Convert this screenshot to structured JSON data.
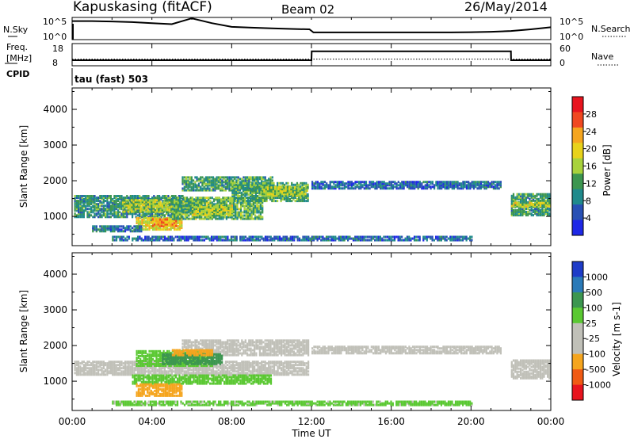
{
  "header": {
    "title": "Kapuskasing (fitACF)",
    "beam": "Beam 02",
    "date": "26/May/2014"
  },
  "noise_panel": {
    "left_label": "N.Sky",
    "right_label": "N.Search",
    "left_ticks": [
      "10^5",
      "10^0"
    ],
    "right_ticks": [
      "10^5",
      "10^0"
    ]
  },
  "freq_panel": {
    "left_label_1": "Freq.",
    "left_label_2": "[MHz]",
    "cpid_label": "CPID",
    "right_label": "Nave",
    "left_ticks": [
      "18",
      "8"
    ],
    "right_ticks": [
      "60",
      "0"
    ],
    "cpid_value": "tau (fast) 503"
  },
  "power_panel": {
    "ylabel": "Slant Range [km]",
    "yticks": [
      "4000",
      "3000",
      "2000",
      "1000"
    ],
    "colorbar_label": "Power [dB]",
    "colorbar_ticks": [
      "28",
      "24",
      "20",
      "16",
      "12",
      "8",
      "4"
    ],
    "colorbar_colors": [
      "#e8141e",
      "#f04820",
      "#f5a51e",
      "#e8d21a",
      "#a8d23c",
      "#3c9650",
      "#208a8c",
      "#2850b4",
      "#1e28e6"
    ]
  },
  "velocity_panel": {
    "ylabel": "Slant Range [km]",
    "yticks": [
      "4000",
      "3000",
      "2000",
      "1000"
    ],
    "colorbar_label": "Velocity [m s-1]",
    "colorbar_ticks": [
      "1000",
      "500",
      "100",
      "25",
      "-25",
      "-100",
      "-500",
      "-1000"
    ],
    "colorbar_colors": [
      "#1e3cc8",
      "#2a7ab8",
      "#3c9650",
      "#5ac832",
      "#c0c0b8",
      "#c0c0b8",
      "#f5a51e",
      "#f05a14",
      "#e8141e"
    ]
  },
  "xaxis": {
    "label": "Time UT",
    "ticks": [
      "00:00",
      "04:00",
      "08:00",
      "12:00",
      "16:00",
      "20:00",
      "00:00"
    ]
  },
  "chart_data": [
    {
      "type": "line",
      "name": "noise",
      "x_hours": [
        0,
        1,
        2,
        3,
        4,
        5,
        6,
        7,
        8,
        9,
        10,
        11,
        11.9,
        12.1,
        13,
        14,
        15,
        16,
        17,
        18,
        19,
        20,
        21,
        22,
        23,
        24
      ],
      "sky_level": [
        0.9,
        0.9,
        0.88,
        0.85,
        0.8,
        0.75,
        0.92,
        0.8,
        0.62,
        0.58,
        0.55,
        0.52,
        0.5,
        0.35,
        0.35,
        0.35,
        0.35,
        0.35,
        0.35,
        0.35,
        0.35,
        0.36,
        0.38,
        0.42,
        0.5,
        0.6
      ]
    },
    {
      "type": "line",
      "name": "frequency",
      "x_hours": [
        0,
        12,
        12.01,
        22,
        22.01,
        24
      ],
      "freq_mhz": [
        10.5,
        10.5,
        14.5,
        14.5,
        10.5,
        10.5
      ],
      "nave": [
        18,
        18,
        18,
        18,
        18,
        18
      ]
    },
    {
      "type": "heatmap",
      "name": "power",
      "x_range_hours": [
        0,
        24
      ],
      "y_range_km": [
        180,
        4600
      ],
      "colorbar_range_db": [
        0,
        30
      ],
      "regions": [
        {
          "t0": 0.1,
          "t1": 5.5,
          "r0": 950,
          "r1": 1550,
          "v": 9
        },
        {
          "t0": 2.5,
          "t1": 6.5,
          "r0": 1100,
          "r1": 1450,
          "v": 15
        },
        {
          "t0": 3.2,
          "t1": 5.5,
          "r0": 600,
          "r1": 950,
          "v": 18
        },
        {
          "t0": 4.0,
          "t1": 5.2,
          "r0": 700,
          "r1": 900,
          "v": 22
        },
        {
          "t0": 1.0,
          "t1": 3.5,
          "r0": 550,
          "r1": 700,
          "v": 6
        },
        {
          "t0": 5.0,
          "t1": 9.5,
          "r0": 900,
          "r1": 1500,
          "v": 12
        },
        {
          "t0": 6.0,
          "t1": 8.0,
          "r0": 1000,
          "r1": 1300,
          "v": 16
        },
        {
          "t0": 5.5,
          "t1": 10.0,
          "r0": 1700,
          "r1": 2100,
          "v": 10
        },
        {
          "t0": 8.0,
          "t1": 11.8,
          "r0": 1400,
          "r1": 1900,
          "v": 11
        },
        {
          "t0": 9.5,
          "t1": 11.8,
          "r0": 1550,
          "r1": 1800,
          "v": 15
        },
        {
          "t0": 12.0,
          "t1": 21.5,
          "r0": 1750,
          "r1": 1950,
          "v": 5
        },
        {
          "t0": 22.0,
          "t1": 23.9,
          "r0": 1000,
          "r1": 1600,
          "v": 10
        },
        {
          "t0": 22.0,
          "t1": 23.9,
          "r0": 1250,
          "r1": 1350,
          "v": 16
        },
        {
          "t0": 2.0,
          "t1": 20.0,
          "r0": 300,
          "r1": 420,
          "v": 5
        }
      ]
    },
    {
      "type": "heatmap",
      "name": "velocity",
      "x_range_hours": [
        0,
        24
      ],
      "y_range_km": [
        180,
        4600
      ],
      "colorbar_range_ms": [
        -1000,
        1000
      ],
      "regions": [
        {
          "t0": 0.1,
          "t1": 11.8,
          "r0": 1150,
          "r1": 1550,
          "v": 0
        },
        {
          "t0": 5.5,
          "t1": 11.8,
          "r0": 1700,
          "r1": 2150,
          "v": 0
        },
        {
          "t0": 3.0,
          "t1": 10.0,
          "r0": 900,
          "r1": 1150,
          "v": 60
        },
        {
          "t0": 3.2,
          "t1": 7.0,
          "r0": 1400,
          "r1": 1850,
          "v": 70
        },
        {
          "t0": 4.5,
          "t1": 7.5,
          "r0": 1450,
          "r1": 1750,
          "v": 300
        },
        {
          "t0": 5.0,
          "t1": 7.0,
          "r0": 1700,
          "r1": 1850,
          "v": -150
        },
        {
          "t0": 3.2,
          "t1": 5.5,
          "r0": 560,
          "r1": 880,
          "v": -200
        },
        {
          "t0": 12.0,
          "t1": 21.5,
          "r0": 1750,
          "r1": 1950,
          "v": 0
        },
        {
          "t0": 22.0,
          "t1": 23.9,
          "r0": 1050,
          "r1": 1550,
          "v": 0
        },
        {
          "t0": 2.0,
          "t1": 20.0,
          "r0": 300,
          "r1": 420,
          "v": 40
        }
      ]
    }
  ]
}
